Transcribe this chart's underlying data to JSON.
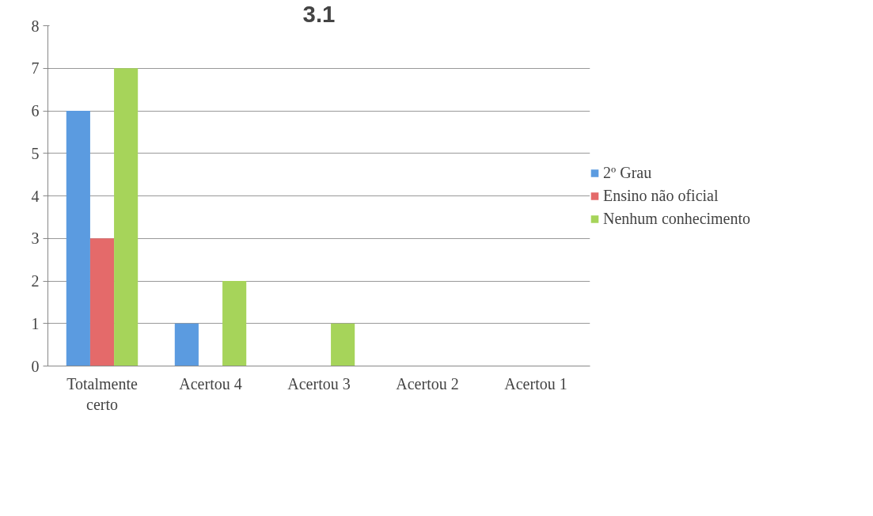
{
  "chart_data": {
    "type": "bar",
    "title": "3.1",
    "categories": [
      "Totalmente certo",
      "Acertou 4",
      "Acertou 3",
      "Acertou 2",
      "Acertou 1"
    ],
    "series": [
      {
        "name": "2º Grau",
        "color": "#5b9be0",
        "values": [
          6,
          1,
          0,
          0,
          0
        ]
      },
      {
        "name": "Ensino não oficial",
        "color": "#e46a6a",
        "values": [
          3,
          0,
          0,
          0,
          0
        ]
      },
      {
        "name": "Nenhum conhecimento",
        "color": "#a6d45a",
        "values": [
          7,
          2,
          1,
          0,
          0
        ]
      }
    ],
    "ylim": [
      0,
      8
    ],
    "yticks": [
      0,
      1,
      2,
      3,
      4,
      5,
      6,
      7,
      8
    ],
    "grid": "y",
    "legend": "right"
  }
}
